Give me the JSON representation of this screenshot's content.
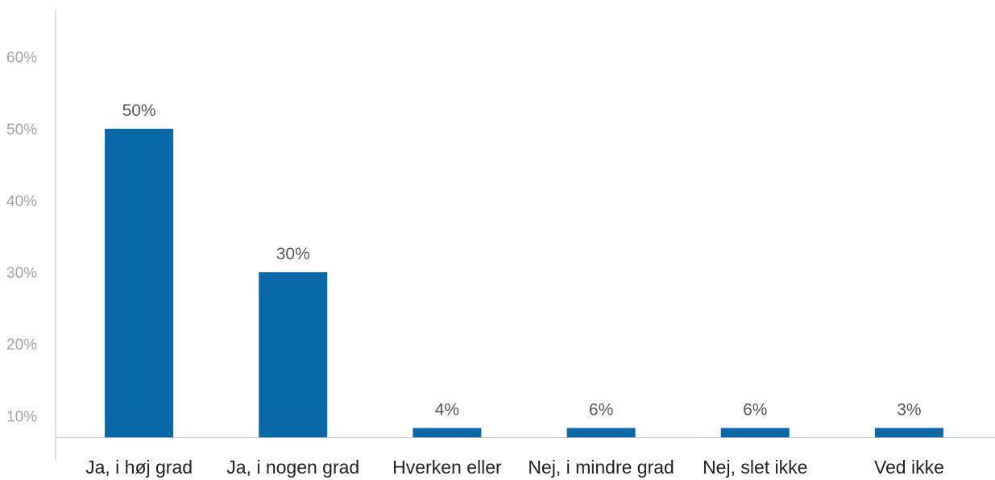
{
  "chart_data": {
    "type": "bar",
    "categories": [
      "Ja, i høj grad",
      "Ja, i nogen grad",
      "Hverken eller",
      "Nej, i mindre grad",
      "Nej, slet ikke",
      "Ved ikke"
    ],
    "values": [
      50,
      30,
      4,
      6,
      6,
      3
    ],
    "data_labels": [
      "50%",
      "30%",
      "4%",
      "6%",
      "6%",
      "3%"
    ],
    "y_ticks": [
      10,
      20,
      30,
      40,
      50,
      60
    ],
    "y_tick_labels": [
      "10%",
      "20%",
      "30%",
      "40%",
      "50%",
      "60%"
    ],
    "ylim": [
      7,
      63
    ],
    "grid": false,
    "title": "",
    "xlabel": "",
    "ylabel": "",
    "colors": {
      "bar": "#0868a8",
      "axis": "#bfbfbf",
      "tick_text": "#a6a6a6",
      "data_label_text": "#595959",
      "category_text": "#222222"
    }
  }
}
